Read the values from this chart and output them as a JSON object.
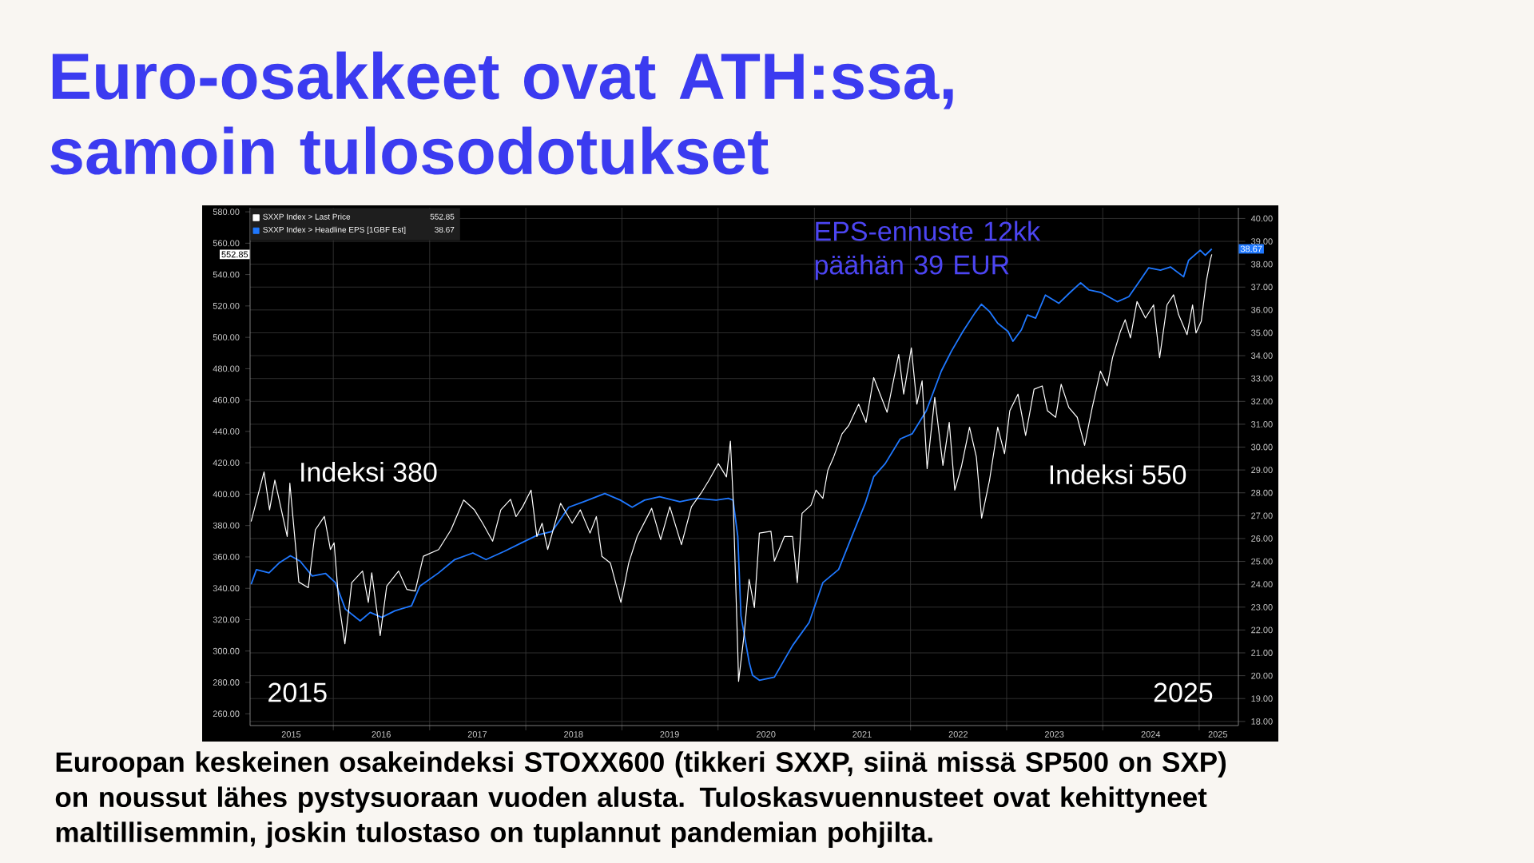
{
  "chart_data": {
    "type": "line",
    "title": "Euro-osakkeet ovat ATH:ssa, samoin tulosodotukset",
    "xlim": [
      "2015-02-19",
      "2025-05-30"
    ],
    "xticks": [
      {
        "value": "2015-07-25",
        "label": "2015"
      },
      {
        "value": "2016-01-01",
        "label": null
      },
      {
        "value": "2016-07-01",
        "label": "2016"
      },
      {
        "value": "2017-01-01",
        "label": null
      },
      {
        "value": "2017-07-01",
        "label": "2017"
      },
      {
        "value": "2018-01-01",
        "label": null
      },
      {
        "value": "2018-07-01",
        "label": "2018"
      },
      {
        "value": "2019-01-01",
        "label": null
      },
      {
        "value": "2019-07-01",
        "label": "2019"
      },
      {
        "value": "2020-01-01",
        "label": null
      },
      {
        "value": "2020-07-01",
        "label": "2020"
      },
      {
        "value": "2021-01-01",
        "label": null
      },
      {
        "value": "2021-07-01",
        "label": "2021"
      },
      {
        "value": "2022-01-01",
        "label": null
      },
      {
        "value": "2022-07-01",
        "label": "2022"
      },
      {
        "value": "2023-01-01",
        "label": null
      },
      {
        "value": "2023-07-01",
        "label": "2023"
      },
      {
        "value": "2024-01-01",
        "label": null
      },
      {
        "value": "2024-07-01",
        "label": "2024"
      },
      {
        "value": "2025-01-01",
        "label": null
      },
      {
        "value": "2025-03-13",
        "label": "2025"
      }
    ],
    "ylim": [
      252.5,
      582.6
    ],
    "yticks": [
      {
        "value": 260,
        "label": "260.00"
      },
      {
        "value": 280,
        "label": "280.00"
      },
      {
        "value": 300,
        "label": "300.00"
      },
      {
        "value": 320,
        "label": "320.00"
      },
      {
        "value": 340,
        "label": "340.00"
      },
      {
        "value": 360,
        "label": "360.00"
      },
      {
        "value": 380,
        "label": "380.00"
      },
      {
        "value": 400,
        "label": "400.00"
      },
      {
        "value": 420,
        "label": "420.00"
      },
      {
        "value": 440,
        "label": "440.00"
      },
      {
        "value": 460,
        "label": "460.00"
      },
      {
        "value": 480,
        "label": "480.00"
      },
      {
        "value": 500,
        "label": "500.00"
      },
      {
        "value": 520,
        "label": "520.00"
      },
      {
        "value": 540,
        "label": "540.00"
      },
      {
        "value": 560,
        "label": "560.00"
      },
      {
        "value": 580,
        "label": "580.00"
      }
    ],
    "y2lim": [
      17.82,
      40.47
    ],
    "y2ticks": [
      {
        "value": 18,
        "label": "18.00"
      },
      {
        "value": 19,
        "label": "19.00"
      },
      {
        "value": 20,
        "label": "20.00"
      },
      {
        "value": 21,
        "label": "21.00"
      },
      {
        "value": 22,
        "label": "22.00"
      },
      {
        "value": 23,
        "label": "23.00"
      },
      {
        "value": 24,
        "label": "24.00"
      },
      {
        "value": 25,
        "label": "25.00"
      },
      {
        "value": 26,
        "label": "26.00"
      },
      {
        "value": 27,
        "label": "27.00"
      },
      {
        "value": 28,
        "label": "28.00"
      },
      {
        "value": 29,
        "label": "29.00"
      },
      {
        "value": 30,
        "label": "30.00"
      },
      {
        "value": 31,
        "label": "31.00"
      },
      {
        "value": 32,
        "label": "32.00"
      },
      {
        "value": 33,
        "label": "33.00"
      },
      {
        "value": 34,
        "label": "34.00"
      },
      {
        "value": 35,
        "label": "35.00"
      },
      {
        "value": 36,
        "label": "36.00"
      },
      {
        "value": 37,
        "label": "37.00"
      },
      {
        "value": 38,
        "label": "38.00"
      },
      {
        "value": 39,
        "label": "39.00"
      },
      {
        "value": 40,
        "label": "40.00"
      }
    ],
    "grid": true,
    "legend": "top left",
    "series": [
      {
        "name": "SXXP Index > Last Price",
        "color": "#ffffff",
        "axis": "y",
        "x": [
          "2015-02-23",
          "2015-04-13",
          "2015-05-04",
          "2015-05-24",
          "2015-07-10",
          "2015-07-20",
          "2015-08-23",
          "2015-09-28",
          "2015-10-25",
          "2015-11-28",
          "2015-12-21",
          "2016-01-04",
          "2016-01-22",
          "2016-02-14",
          "2016-03-11",
          "2016-04-21",
          "2016-05-13",
          "2016-05-26",
          "2016-06-27",
          "2016-07-22",
          "2016-09-05",
          "2016-10-06",
          "2016-11-07",
          "2016-12-08",
          "2017-02-04",
          "2017-03-23",
          "2017-05-10",
          "2017-06-20",
          "2017-07-21",
          "2017-08-28",
          "2017-09-28",
          "2017-11-04",
          "2017-11-25",
          "2017-12-20",
          "2018-01-21",
          "2018-02-12",
          "2018-03-04",
          "2018-03-25",
          "2018-05-13",
          "2018-06-26",
          "2018-07-27",
          "2018-09-02",
          "2018-09-26",
          "2018-10-17",
          "2018-11-18",
          "2018-12-28",
          "2019-01-27",
          "2019-02-28",
          "2019-04-24",
          "2019-05-28",
          "2019-07-02",
          "2019-08-15",
          "2019-09-22",
          "2019-10-28",
          "2019-11-28",
          "2020-01-02",
          "2020-02-02",
          "2020-02-17",
          "2020-02-27",
          "2020-03-16",
          "2020-03-19",
          "2020-04-10",
          "2020-04-28",
          "2020-05-18",
          "2020-06-06",
          "2020-07-20",
          "2020-08-02",
          "2020-09-09",
          "2020-10-10",
          "2020-10-28",
          "2020-11-15",
          "2020-12-19",
          "2021-01-07",
          "2021-02-02",
          "2021-02-21",
          "2021-03-15",
          "2021-04-16",
          "2021-05-11",
          "2021-06-18",
          "2021-07-16",
          "2021-08-14",
          "2021-10-04",
          "2021-11-17",
          "2021-12-06",
          "2022-01-04",
          "2022-01-25",
          "2022-02-14",
          "2022-03-05",
          "2022-04-03",
          "2022-05-04",
          "2022-05-28",
          "2022-06-18",
          "2022-07-13",
          "2022-08-13",
          "2022-09-08",
          "2022-09-28",
          "2022-10-28",
          "2022-11-28",
          "2022-12-24",
          "2023-01-13",
          "2023-02-13",
          "2023-03-14",
          "2023-04-15",
          "2023-05-16",
          "2023-06-05",
          "2023-07-06",
          "2023-07-27",
          "2023-08-25",
          "2023-09-26",
          "2023-10-24",
          "2023-11-22",
          "2023-12-23",
          "2024-01-18",
          "2024-02-07",
          "2024-03-08",
          "2024-03-26",
          "2024-04-15",
          "2024-05-10",
          "2024-06-11",
          "2024-07-12",
          "2024-08-04",
          "2024-09-01",
          "2024-09-26",
          "2024-10-15",
          "2024-11-16",
          "2024-12-07",
          "2024-12-20",
          "2025-01-09",
          "2025-01-28",
          "2025-02-12",
          "2025-02-18"
        ],
        "values": [
          382.6,
          414.2,
          390,
          409,
          373,
          407,
          344,
          340.4,
          377.3,
          385.8,
          364.7,
          369,
          331,
          304.6,
          343.6,
          351,
          331,
          349.9,
          309.8,
          341.5,
          351,
          339.3,
          338.3,
          360.4,
          364.7,
          377.3,
          396.3,
          390,
          381.5,
          370,
          390,
          396.7,
          385.7,
          392,
          402.6,
          373,
          381.5,
          364.7,
          394.2,
          381.5,
          390,
          375.2,
          385.7,
          360.4,
          356.2,
          331,
          356.2,
          373.1,
          391,
          371,
          392,
          367.8,
          392,
          400.5,
          409,
          419.5,
          411,
          433.8,
          398.4,
          299.3,
          280.7,
          311.9,
          345.7,
          327.7,
          375.2,
          376.3,
          357.3,
          373,
          373,
          343.6,
          387.8,
          393,
          402.6,
          397.3,
          415.3,
          423.7,
          438.5,
          443.7,
          457.4,
          445.8,
          474.3,
          452.2,
          489.1,
          463.8,
          493.3,
          457.4,
          472.2,
          416.3,
          461.7,
          418.4,
          445.8,
          402.6,
          417.4,
          442.7,
          423.7,
          384.7,
          409,
          442.7,
          425.8,
          453.2,
          463.8,
          437.4,
          466.9,
          469,
          453.2,
          449,
          470.1,
          455.3,
          449,
          431.1,
          455.3,
          478.5,
          469,
          487,
          503.8,
          511.2,
          499.6,
          522.8,
          512.3,
          520.7,
          487,
          520.7,
          527.1,
          514.4,
          501.7,
          520.7,
          502.8,
          510.2,
          535.5,
          549.2,
          552.85
        ],
        "value_labels": [
          null,
          null,
          null,
          null,
          null,
          null,
          null,
          null,
          null,
          null,
          null,
          null,
          null,
          null,
          null,
          null,
          null,
          null,
          null,
          null,
          null,
          null,
          null,
          null,
          null,
          null,
          null,
          null,
          null,
          null,
          null,
          null,
          null,
          null,
          null,
          null,
          null,
          null,
          null,
          null,
          null,
          null,
          null,
          null,
          null,
          null,
          null,
          null,
          null,
          null,
          null,
          null,
          null,
          null,
          null,
          null,
          null,
          null,
          null,
          null,
          null,
          null,
          null,
          null,
          null,
          null,
          null,
          null,
          null,
          null,
          null,
          null,
          null,
          null,
          null,
          null,
          null,
          null,
          null,
          null,
          null,
          null,
          null,
          null,
          null,
          null,
          null,
          null,
          null,
          null,
          null,
          null,
          null,
          null,
          null,
          null,
          null,
          null,
          null,
          null,
          null,
          null,
          null,
          null,
          null,
          null,
          null,
          null,
          null,
          null,
          null,
          null,
          null,
          null,
          null,
          null,
          null,
          null,
          null,
          null,
          null,
          null,
          null,
          null,
          null,
          null,
          null,
          null,
          null,
          null,
          null
        ]
      },
      {
        "name": "SXXP Index > Headline EPS [1GBF Est]",
        "color": "#1f78ff",
        "axis": "y2",
        "x": [
          "2015-02-23",
          "2015-03-15",
          "2015-05-02",
          "2015-06-09",
          "2015-07-22",
          "2015-08-28",
          "2015-10-13",
          "2015-12-03",
          "2016-01-09",
          "2016-02-16",
          "2016-04-12",
          "2016-05-20",
          "2016-07-03",
          "2016-08-22",
          "2016-10-24",
          "2016-11-25",
          "2017-02-04",
          "2017-04-06",
          "2017-06-14",
          "2017-08-03",
          "2017-10-11",
          "2017-12-14",
          "2018-02-16",
          "2018-04-11",
          "2018-06-13",
          "2018-08-09",
          "2018-10-28",
          "2018-12-26",
          "2019-02-09",
          "2019-03-28",
          "2019-05-24",
          "2019-08-09",
          "2019-10-11",
          "2019-12-25",
          "2020-02-09",
          "2020-02-27",
          "2020-03-16",
          "2020-03-28",
          "2020-04-28",
          "2020-05-11",
          "2020-06-06",
          "2020-08-02",
          "2020-10-10",
          "2020-12-12",
          "2021-02-02",
          "2021-04-03",
          "2021-05-23",
          "2021-07-13",
          "2021-08-14",
          "2021-09-27",
          "2021-11-23",
          "2022-01-07",
          "2022-03-02",
          "2022-04-28",
          "2022-06-05",
          "2022-07-19",
          "2022-09-02",
          "2022-09-27",
          "2022-10-28",
          "2022-11-28",
          "2023-01-06",
          "2023-01-25",
          "2023-02-26",
          "2023-03-21",
          "2023-04-21",
          "2023-05-28",
          "2023-07-18",
          "2023-09-02",
          "2023-10-09",
          "2023-11-10",
          "2023-12-23",
          "2024-02-25",
          "2024-04-09",
          "2024-05-22",
          "2024-06-23",
          "2024-08-07",
          "2024-09-14",
          "2024-11-03",
          "2024-11-22",
          "2025-01-05",
          "2025-01-24",
          "2025-02-18"
        ],
        "values": [
          24.0,
          24.64,
          24.5,
          24.93,
          25.25,
          25.01,
          24.36,
          24.47,
          24.07,
          22.91,
          22.4,
          22.77,
          22.55,
          22.84,
          23.06,
          23.92,
          24.5,
          25.08,
          25.37,
          25.08,
          25.44,
          25.8,
          26.16,
          26.31,
          27.37,
          27.61,
          27.97,
          27.68,
          27.37,
          27.68,
          27.83,
          27.61,
          27.76,
          27.68,
          27.76,
          27.68,
          26.09,
          22.62,
          20.6,
          20.02,
          19.8,
          19.94,
          21.32,
          22.33,
          24.07,
          24.65,
          26.09,
          27.54,
          28.7,
          29.28,
          30.36,
          30.58,
          31.59,
          33.33,
          34.19,
          35.06,
          35.86,
          36.25,
          35.93,
          35.42,
          35.06,
          34.63,
          35.13,
          35.78,
          35.64,
          36.65,
          36.29,
          36.8,
          37.19,
          36.87,
          36.77,
          36.36,
          36.58,
          37.3,
          37.84,
          37.74,
          37.88,
          37.45,
          38.17,
          38.61,
          38.39,
          38.67
        ],
        "value_labels": [
          null,
          null,
          null,
          null,
          null,
          null,
          null,
          null,
          null,
          null,
          null,
          null,
          null,
          null,
          null,
          null,
          null,
          null,
          null,
          null,
          null,
          null,
          null,
          null,
          null,
          null,
          null,
          null,
          null,
          null,
          null,
          null,
          null,
          null,
          null,
          null,
          null,
          null,
          null,
          null,
          null,
          null,
          null,
          null,
          null,
          null,
          null,
          null,
          null,
          null,
          null,
          null,
          null,
          null,
          null,
          null,
          null,
          null,
          null,
          null,
          null,
          null,
          null,
          null,
          null,
          null,
          null,
          null,
          null,
          null,
          null,
          null,
          null,
          null,
          null,
          null,
          null,
          null,
          null,
          null,
          null,
          null
        ]
      }
    ],
    "annotations": [
      "Indeksi 380",
      "2015",
      "EPS-ennuste 12kk päähän 39 EUR",
      "Indeksi 550",
      "2025",
      "Euroopan keskeinen osakeindeksi STOXX600 (tikkeri SXXP, siinä missä SP500 on SXP) on noussut lähes pystysuoraan vuoden alusta. Tuloskasvuennusteet ovat kehittyneet maltillisemmin, joskin tulostaso on tuplannut pandemian pohjilta.",
      "552.85",
      "38.67",
      "552.85",
      "38.67"
    ]
  }
}
